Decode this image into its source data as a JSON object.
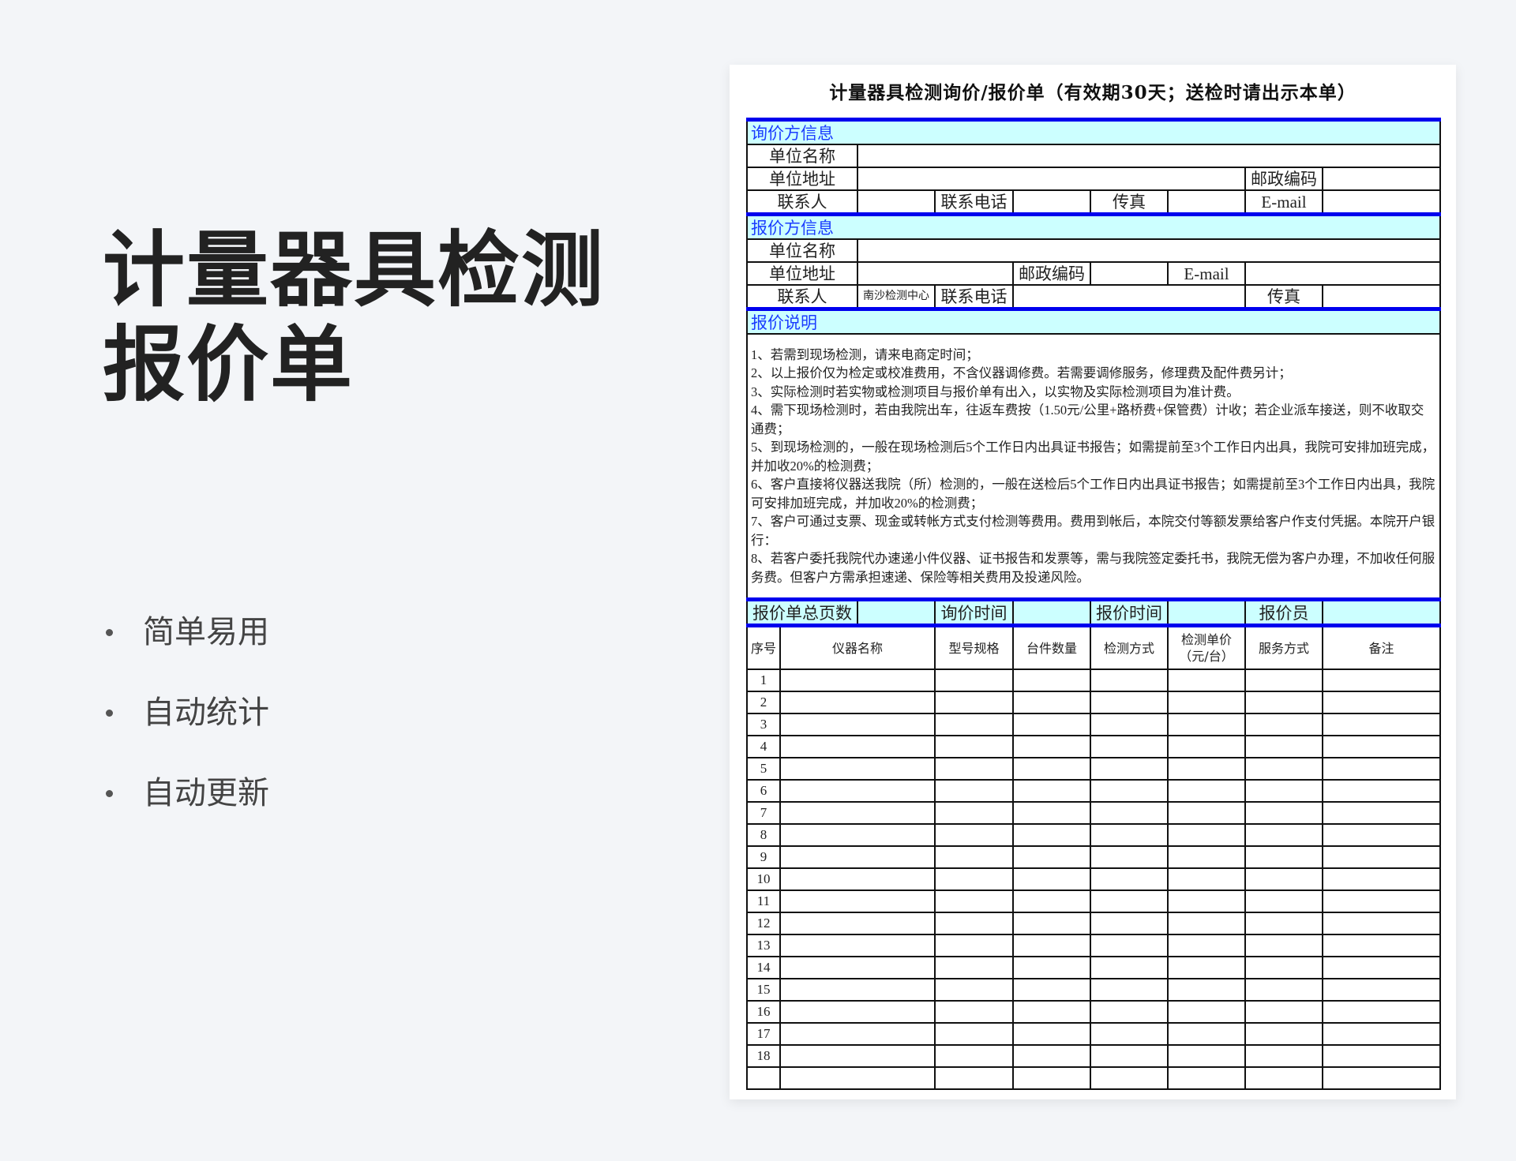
{
  "hero": {
    "title": "计量器具检测报价单",
    "features": [
      "简单易用",
      "自动统计",
      "自动更新"
    ]
  },
  "document": {
    "title": "计量器具检测询价/报价单（有效期30天；送检时请出示本单）",
    "inquirer": {
      "heading": "询价方信息",
      "unit_name": "单位名称",
      "unit_address": "单位地址",
      "postcode": "邮政编码",
      "contact": "联系人",
      "phone": "联系电话",
      "fax": "传真",
      "email": "E-mail"
    },
    "quoter": {
      "heading": "报价方信息",
      "unit_name": "单位名称",
      "unit_address": "单位地址",
      "postcode": "邮政编码",
      "email": "E-mail",
      "contact": "联系人",
      "contact_value": "南沙检测中心",
      "phone": "联系电话",
      "fax": "传真"
    },
    "notes": {
      "heading": "报价说明",
      "items": [
        "1、若需到现场检测，请来电商定时间；",
        "2、以上报价仅为检定或校准费用，不含仪器调修费。若需要调修服务，修理费及配件费另计；",
        "3、实际检测时若实物或检测项目与报价单有出入，以实物及实际检测项目为准计费。",
        "4、需下现场检测时，若由我院出车，往返车费按（1.50元/公里+路桥费+保管费）计收；若企业派车接送，则不收取交通费；",
        "5、到现场检测的，一般在现场检测后5个工作日内出具证书报告；如需提前至3个工作日内出具，我院可安排加班完成，并加收20%的检测费；",
        "6、客户直接将仪器送我院（所）检测的，一般在送检后5个工作日内出具证书报告；如需提前至3个工作日内出具，我院可安排加班完成，并加收20%的检测费；",
        "7、客户可通过支票、现金或转帐方式支付检测等费用。费用到帐后，本院交付等额发票给客户作支付凭据。本院开户银行：",
        "8、若客户委托我院代办速递小件仪器、证书报告和发票等，需与我院签定委托书，我院无偿为客户办理，不加收任何服务费。但客户方需承担速递、保险等相关费用及投递风险。"
      ]
    },
    "summary": {
      "total_pages": "报价单总页数",
      "inquiry_time": "询价时间",
      "quote_time": "报价时间",
      "quoter_person": "报价员"
    },
    "items_table": {
      "columns": [
        "序号",
        "仪器名称",
        "型号规格",
        "台件数量",
        "检测方式",
        "检测单价（元/台）",
        "服务方式",
        "备注"
      ],
      "rows": [
        "1",
        "2",
        "3",
        "4",
        "5",
        "6",
        "7",
        "8",
        "9",
        "10",
        "11",
        "12",
        "13",
        "14",
        "15",
        "16",
        "17",
        "18",
        ""
      ]
    },
    "colors": {
      "section_bg": "#ccffff",
      "section_text": "#1b3cff",
      "rule": "#0000ee"
    }
  }
}
